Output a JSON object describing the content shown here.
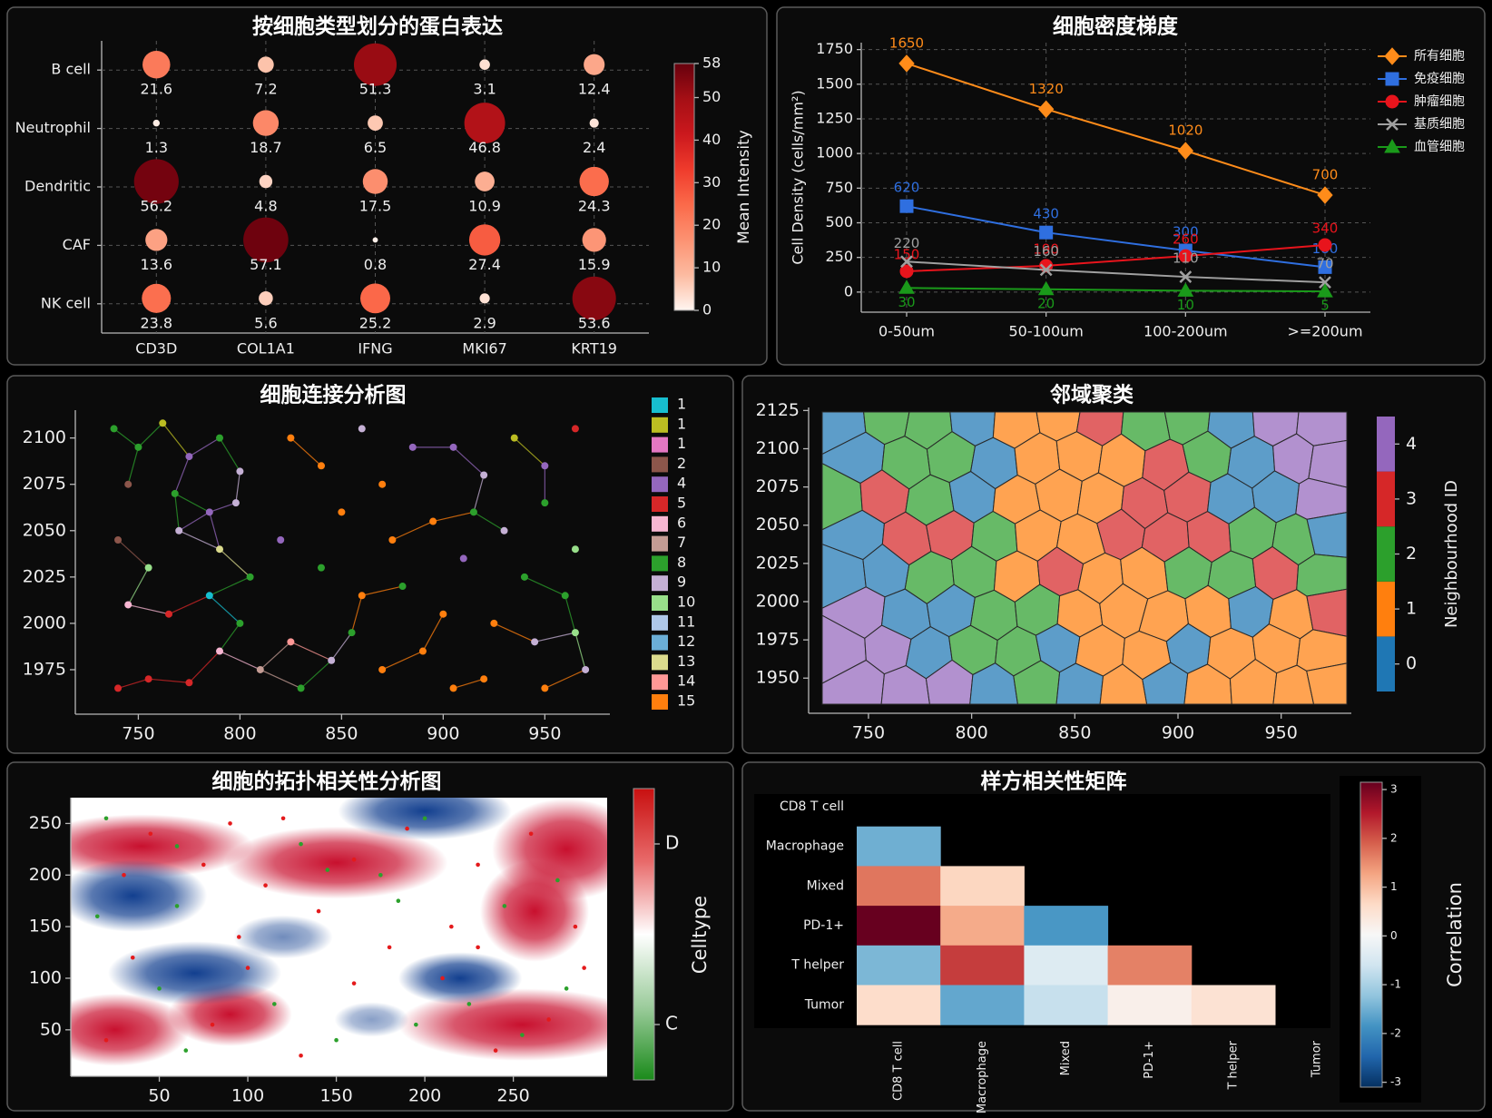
{
  "chart_data": [
    {
      "type": "bubble",
      "title": "按细胞类型划分的蛋白表达",
      "rows": [
        "B cell",
        "Neutrophil",
        "Dendritic",
        "CAF",
        "NK cell"
      ],
      "columns": [
        "CD3D",
        "COL1A1",
        "IFNG",
        "MKI67",
        "KRT19"
      ],
      "values": [
        [
          21.6,
          7.2,
          51.3,
          3.1,
          12.4
        ],
        [
          1.3,
          18.7,
          6.5,
          46.8,
          2.4
        ],
        [
          56.2,
          4.8,
          17.5,
          10.9,
          24.3
        ],
        [
          13.6,
          57.1,
          0.8,
          27.4,
          15.9
        ],
        [
          23.8,
          5.6,
          25.2,
          2.9,
          53.6
        ]
      ],
      "clim": [
        0,
        58
      ],
      "cbar_ticks": [
        0,
        10,
        20,
        30,
        40,
        50,
        58
      ],
      "cbar_label": "Mean Intensity",
      "grid": true
    },
    {
      "type": "line",
      "title": "细胞密度梯度",
      "categories": [
        "0-50um",
        "50-100um",
        "100-200um",
        ">=200um"
      ],
      "ylabel": "Cell Density (cells/mm²)",
      "ylim": [
        -145,
        1800
      ],
      "yticks": [
        0,
        250,
        500,
        750,
        1000,
        1250,
        1500,
        1750
      ],
      "grid": true,
      "legend": "upper right",
      "series": [
        {
          "name": "所有细胞",
          "color": "#ff8c1a",
          "marker": "diamond",
          "values": [
            1650,
            1320,
            1020,
            700
          ]
        },
        {
          "name": "免疫细胞",
          "color": "#2f6fe0",
          "marker": "square",
          "values": [
            620,
            430,
            300,
            180
          ]
        },
        {
          "name": "肿瘤细胞",
          "color": "#e8141c",
          "marker": "circle",
          "values": [
            150,
            190,
            260,
            340
          ]
        },
        {
          "name": "基质细胞",
          "color": "#a0a0a0",
          "marker": "x",
          "values": [
            220,
            160,
            110,
            70
          ]
        },
        {
          "name": "血管细胞",
          "color": "#1a9a1a",
          "marker": "triangle",
          "values": [
            30,
            20,
            10,
            5
          ]
        }
      ]
    },
    {
      "type": "network",
      "title": "细胞连接分析图",
      "xlim": [
        719,
        982
      ],
      "ylim": [
        1951,
        2115
      ],
      "xticks": [
        750,
        800,
        850,
        900,
        950
      ],
      "yticks": [
        1975,
        2000,
        2025,
        2050,
        2075,
        2100
      ],
      "legend_labels": [
        "1",
        "1",
        "1",
        "2",
        "4",
        "5",
        "6",
        "7",
        "8",
        "9",
        "10",
        "11",
        "12",
        "13",
        "14",
        "15"
      ],
      "legend_colors": [
        "#17becf",
        "#bcbd22",
        "#e377c2",
        "#8c564b",
        "#9467bd",
        "#d62728",
        "#f7b6d2",
        "#c49c94",
        "#2ca02c",
        "#c5b0d5",
        "#98df8a",
        "#aec7e8",
        "#6baed6",
        "#dbdb8d",
        "#ff9896",
        "#ff7f0e"
      ],
      "node_x": [
        738,
        750,
        762,
        775,
        790,
        800,
        745,
        768,
        785,
        798,
        740,
        755,
        770,
        790,
        805,
        745,
        765,
        785,
        800,
        820,
        740,
        755,
        775,
        790,
        810,
        825,
        830,
        845,
        825,
        840,
        860,
        870,
        885,
        850,
        875,
        895,
        840,
        860,
        880,
        900,
        855,
        870,
        890,
        905,
        905,
        920,
        935,
        950,
        965,
        915,
        930,
        950,
        965,
        910,
        940,
        960,
        925,
        945,
        965,
        920,
        950,
        970
      ],
      "node_y": [
        2105,
        2095,
        2108,
        2090,
        2100,
        2082,
        2075,
        2070,
        2060,
        2065,
        2045,
        2030,
        2050,
        2040,
        2025,
        2010,
        2005,
        2015,
        2000,
        2045,
        1965,
        1970,
        1968,
        1985,
        1975,
        1990,
        1965,
        1980,
        2100,
        2085,
        2105,
        2075,
        2095,
        2060,
        2045,
        2055,
        2030,
        2015,
        2020,
        2005,
        1995,
        1975,
        1985,
        1965,
        2095,
        2080,
        2100,
        2085,
        2105,
        2060,
        2050,
        2065,
        2040,
        2035,
        2025,
        2015,
        2000,
        1990,
        1995,
        1970,
        1965,
        1975
      ],
      "node_group": [
        8,
        8,
        1,
        4,
        8,
        9,
        3,
        8,
        4,
        9,
        3,
        10,
        9,
        13,
        8,
        6,
        5,
        0,
        8,
        4,
        5,
        5,
        5,
        6,
        7,
        14,
        8,
        9,
        15,
        15,
        9,
        15,
        4,
        15,
        15,
        15,
        8,
        15,
        8,
        15,
        8,
        15,
        15,
        15,
        4,
        9,
        1,
        4,
        5,
        8,
        9,
        8,
        10,
        4,
        8,
        8,
        15,
        9,
        10,
        15,
        15,
        9
      ]
    },
    {
      "type": "voronoi",
      "title": "邻域聚类",
      "xlim": [
        721,
        984
      ],
      "ylim": [
        1927,
        2127
      ],
      "xticks": [
        750,
        800,
        850,
        900,
        950
      ],
      "yticks": [
        1950,
        1975,
        2000,
        2025,
        2050,
        2075,
        2100,
        2125
      ],
      "site_x": [
        737,
        759,
        779,
        801,
        821,
        843,
        861,
        885,
        904,
        926,
        947,
        969,
        746,
        768,
        790,
        811,
        832,
        852,
        873,
        894,
        914,
        936,
        957,
        972,
        736,
        757,
        781,
        800,
        822,
        842,
        863,
        883,
        905,
        925,
        948,
        968,
        745,
        769,
        789,
        812,
        831,
        853,
        872,
        895,
        915,
        935,
        958,
        971,
        738,
        758,
        780,
        802,
        821,
        844,
        862,
        884,
        904,
        927,
        947,
        969,
        747,
        767,
        791,
        810,
        833,
        851,
        874,
        893,
        916,
        934,
        956,
        972,
        737,
        760,
        779,
        801,
        823,
        842,
        861,
        886,
        905,
        925,
        949,
        968,
        746,
        768,
        789,
        811,
        831,
        853,
        873,
        894,
        914,
        937,
        957,
        971
      ],
      "site_y": [
        2118,
        2121,
        2116,
        2119,
        2117,
        2122,
        2118,
        2115,
        2120,
        2117,
        2119,
        2116,
        2094,
        2091,
        2095,
        2090,
        2093,
        2096,
        2092,
        2089,
        2095,
        2091,
        2093,
        2090,
        2068,
        2070,
        2065,
        2069,
        2066,
        2071,
        2067,
        2064,
        2069,
        2066,
        2070,
        2067,
        2043,
        2040,
        2045,
        2042,
        2044,
        2039,
        2046,
        2041,
        2043,
        2045,
        2040,
        2044,
        2018,
        2021,
        2016,
        2019,
        2017,
        2020,
        2015,
        2018,
        2021,
        2016,
        2019,
        2017,
        1993,
        1990,
        1995,
        1991,
        1994,
        1992,
        1996,
        1989,
        1993,
        1995,
        1990,
        1994,
        1968,
        1970,
        1965,
        1969,
        1966,
        1971,
        1967,
        1964,
        1969,
        1966,
        1970,
        1967,
        1945,
        1942,
        1946,
        1943,
        1947,
        1944,
        1941,
        1946,
        1943,
        1945,
        1942,
        1946
      ],
      "site_group": [
        0,
        2,
        2,
        0,
        1,
        1,
        3,
        2,
        2,
        0,
        4,
        4,
        0,
        2,
        2,
        0,
        1,
        1,
        1,
        3,
        2,
        0,
        4,
        4,
        2,
        3,
        2,
        0,
        1,
        1,
        1,
        3,
        3,
        0,
        0,
        4,
        0,
        3,
        3,
        2,
        1,
        1,
        3,
        3,
        3,
        2,
        2,
        0,
        0,
        0,
        2,
        2,
        1,
        3,
        1,
        1,
        2,
        2,
        3,
        2,
        4,
        0,
        0,
        2,
        2,
        1,
        1,
        1,
        1,
        0,
        1,
        3,
        4,
        4,
        0,
        2,
        2,
        0,
        1,
        1,
        0,
        1,
        1,
        1,
        4,
        4,
        4,
        0,
        2,
        0,
        1,
        0,
        1,
        1,
        1,
        1
      ],
      "group_colors": [
        "#1f77b4",
        "#ff7f0e",
        "#2ca02c",
        "#d62728",
        "#9467bd"
      ],
      "cbar_ticks": [
        0,
        1,
        2,
        3,
        4
      ],
      "cbar_label": "Neighbourhood ID"
    },
    {
      "type": "density",
      "title": "细胞的拓扑相关性分析图",
      "xlim": [
        0,
        303
      ],
      "ylim": [
        5,
        275
      ],
      "xticks": [
        50,
        100,
        150,
        200,
        250
      ],
      "yticks": [
        50,
        100,
        150,
        200,
        250
      ],
      "blob_x": [
        40,
        150,
        280,
        262,
        25,
        90,
        255,
        200,
        35,
        70,
        220,
        120,
        170
      ],
      "blob_y": [
        228,
        212,
        225,
        165,
        50,
        65,
        55,
        262,
        180,
        105,
        100,
        140,
        60
      ],
      "blob_rx": [
        45,
        45,
        30,
        22,
        30,
        25,
        50,
        35,
        30,
        35,
        25,
        20,
        15
      ],
      "blob_ry": [
        22,
        25,
        35,
        35,
        25,
        22,
        25,
        20,
        25,
        22,
        18,
        15,
        12
      ],
      "blob_w": [
        1,
        1,
        1,
        1,
        1,
        1,
        1,
        -1,
        -1,
        -1,
        -1,
        -0.6,
        -0.5
      ],
      "point_x": [
        20,
        45,
        60,
        90,
        110,
        130,
        145,
        160,
        175,
        190,
        200,
        215,
        230,
        245,
        260,
        275,
        285,
        290,
        270,
        255,
        240,
        225,
        210,
        195,
        180,
        160,
        150,
        130,
        115,
        95,
        80,
        65,
        50,
        35,
        20,
        15,
        30,
        60,
        100,
        140,
        185,
        230,
        280,
        120,
        75
      ],
      "point_y": [
        255,
        240,
        228,
        250,
        190,
        230,
        205,
        215,
        200,
        245,
        255,
        150,
        210,
        170,
        240,
        195,
        150,
        110,
        60,
        45,
        30,
        75,
        100,
        55,
        130,
        95,
        40,
        25,
        75,
        140,
        55,
        30,
        90,
        120,
        40,
        160,
        200,
        170,
        110,
        165,
        175,
        130,
        90,
        255,
        210
      ],
      "point_type": [
        1,
        0,
        1,
        0,
        0,
        1,
        1,
        0,
        1,
        0,
        1,
        0,
        0,
        1,
        0,
        1,
        0,
        0,
        0,
        1,
        0,
        1,
        0,
        1,
        0,
        0,
        1,
        0,
        1,
        0,
        0,
        1,
        1,
        0,
        0,
        1,
        0,
        1,
        0,
        0,
        1,
        0,
        1,
        0,
        0
      ],
      "point_colors": [
        "#e41a1c",
        "#2ca02c"
      ],
      "cbar_lim": [
        0,
        1
      ],
      "cbar_ticks": [
        {
          "value": 0.81,
          "label": "D"
        },
        {
          "value": 0.19,
          "label": "C"
        }
      ],
      "cbar_label": "Celltype"
    },
    {
      "type": "heatmap",
      "title": "样方相关性矩阵",
      "labels": [
        "CD8 T cell",
        "Macrophage",
        "Mixed",
        "PD-1+",
        "T helper",
        "Tumor"
      ],
      "values": [
        [],
        [
          -1.5
        ],
        [
          1.7,
          0.7
        ],
        [
          3.2,
          1.2,
          -1.8
        ],
        [
          -1.4,
          2.2,
          -0.4,
          1.6
        ],
        [
          0.6,
          -1.6,
          -0.7,
          0.2,
          0.5
        ]
      ],
      "clim": [
        -3.1,
        3.15
      ],
      "cbar_ticks": [
        -3,
        -2,
        -1,
        0,
        1,
        2,
        3
      ],
      "cbar_label": "Correlation"
    }
  ]
}
